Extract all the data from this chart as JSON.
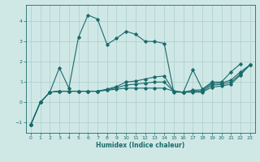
{
  "xlabel": "Humidex (Indice chaleur)",
  "background_color": "#cfe8e6",
  "grid_color": "#aacccc",
  "line_color": "#1a6b6b",
  "xlim": [
    -0.5,
    23.5
  ],
  "ylim": [
    -1.5,
    4.8
  ],
  "xticks": [
    0,
    1,
    2,
    3,
    4,
    5,
    6,
    7,
    8,
    9,
    10,
    11,
    12,
    13,
    14,
    15,
    16,
    17,
    18,
    19,
    20,
    21,
    22,
    23
  ],
  "yticks": [
    -1,
    0,
    1,
    2,
    3,
    4
  ],
  "series1_x": [
    0,
    1,
    2,
    3,
    4,
    5,
    6,
    7,
    8,
    9,
    10,
    11,
    12,
    13,
    14,
    15,
    16,
    17,
    18,
    19,
    20,
    21,
    22
  ],
  "series1_y": [
    -1.1,
    0.0,
    0.5,
    1.7,
    0.7,
    3.2,
    4.3,
    4.1,
    2.85,
    3.15,
    3.5,
    3.35,
    3.0,
    3.0,
    2.9,
    0.5,
    0.5,
    1.6,
    0.65,
    1.0,
    1.0,
    1.5,
    1.9
  ],
  "series2_x": [
    0,
    1,
    2,
    3,
    4,
    5,
    6,
    7,
    8,
    9,
    10,
    11,
    12,
    13,
    14,
    15,
    16,
    17,
    18,
    19,
    20,
    21,
    22,
    23
  ],
  "series2_y": [
    -1.1,
    0.0,
    0.5,
    0.55,
    0.55,
    0.55,
    0.55,
    0.55,
    0.6,
    0.65,
    0.7,
    0.7,
    0.7,
    0.7,
    0.7,
    0.55,
    0.5,
    0.5,
    0.5,
    0.75,
    0.8,
    0.9,
    1.35,
    1.85
  ],
  "series3_x": [
    0,
    1,
    2,
    3,
    4,
    5,
    6,
    7,
    8,
    9,
    10,
    11,
    12,
    13,
    14,
    15,
    16,
    17,
    18,
    19,
    20,
    21,
    22,
    23
  ],
  "series3_y": [
    -1.1,
    0.0,
    0.5,
    0.55,
    0.55,
    0.55,
    0.55,
    0.55,
    0.62,
    0.72,
    0.85,
    0.9,
    0.95,
    1.0,
    1.0,
    0.55,
    0.5,
    0.55,
    0.55,
    0.85,
    0.88,
    1.0,
    1.4,
    1.85
  ],
  "series4_x": [
    0,
    1,
    2,
    3,
    4,
    5,
    6,
    7,
    8,
    9,
    10,
    11,
    12,
    13,
    14,
    15,
    16,
    17,
    18,
    19,
    20,
    21,
    22,
    23
  ],
  "series4_y": [
    -1.1,
    0.0,
    0.5,
    0.55,
    0.55,
    0.55,
    0.55,
    0.55,
    0.65,
    0.78,
    1.0,
    1.05,
    1.15,
    1.25,
    1.3,
    0.55,
    0.5,
    0.6,
    0.62,
    0.92,
    0.95,
    1.1,
    1.5,
    1.85
  ]
}
